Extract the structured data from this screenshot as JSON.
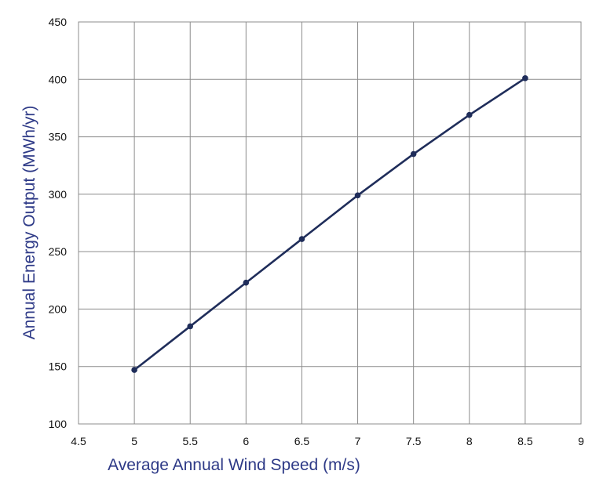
{
  "chart_data": {
    "type": "line",
    "title": "",
    "xlabel": "Average Annual Wind Speed (m/s)",
    "ylabel": "Annual Energy Output (MWh/yr)",
    "xlim": [
      4.5,
      9
    ],
    "ylim": [
      100,
      450
    ],
    "x_ticks": [
      "4.5",
      "5",
      "5.5",
      "6",
      "6.5",
      "7",
      "7.5",
      "8",
      "8.5",
      "9"
    ],
    "y_ticks": [
      "100",
      "150",
      "200",
      "250",
      "300",
      "350",
      "400",
      "450"
    ],
    "grid": true,
    "legend": "none",
    "series": [
      {
        "color": "#1f2d5a",
        "x": [
          5,
          5.5,
          6,
          6.5,
          7,
          7.5,
          8,
          8.5
        ],
        "y": [
          147,
          185,
          223,
          261,
          299,
          335,
          369,
          401
        ]
      }
    ]
  }
}
